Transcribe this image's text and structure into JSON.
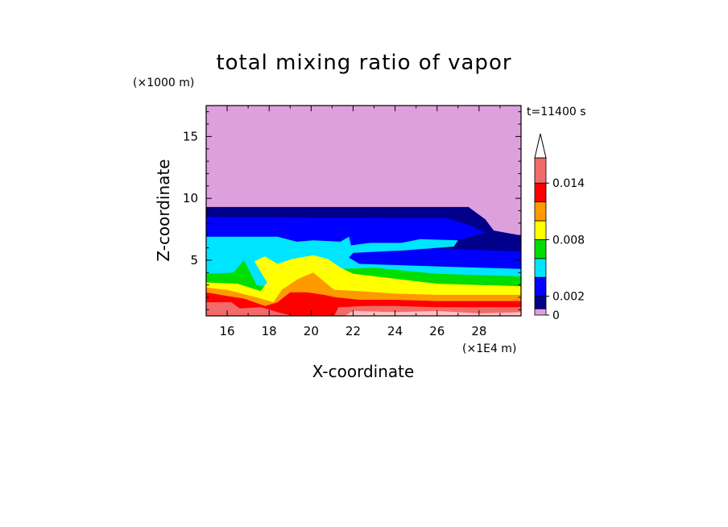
{
  "chart_data": {
    "type": "contour",
    "title": "total mixing ratio of vapor",
    "xlabel": "X-coordinate",
    "ylabel": "Z-coordinate",
    "x_unit": "(×1E4 m)",
    "y_unit": "(×1000 m)",
    "time_label": "t=11400 s",
    "xlim": [
      15,
      30
    ],
    "ylim": [
      0.5,
      17.5
    ],
    "x_ticks": [
      16,
      18,
      20,
      22,
      24,
      26,
      28
    ],
    "y_ticks": [
      5,
      10,
      15
    ],
    "colorbar": {
      "levels": [
        0,
        0.001,
        0.002,
        0.004,
        0.006,
        0.008,
        0.01,
        0.012,
        0.014,
        0.016
      ],
      "labels": [
        "0",
        "0.002",
        "0.008",
        "0.014"
      ],
      "extend": "max",
      "colors": [
        "#dda0dd",
        "#00008b",
        "#0000ff",
        "#00e5ff",
        "#00dd00",
        "#ffff00",
        "#ff9900",
        "#ff0000",
        "#f26b6b",
        "#ffc0c0"
      ]
    },
    "bands": [
      {
        "level": "0-0.001",
        "color": "#dda0dd",
        "points": [
          [
            15,
            17.5
          ],
          [
            30,
            17.5
          ],
          [
            30,
            0.5
          ],
          [
            15,
            0.5
          ]
        ]
      },
      {
        "level": "0.001-0.002",
        "color": "#00008b",
        "points": [
          [
            15,
            9.3
          ],
          [
            27.5,
            9.3
          ],
          [
            28.3,
            8.3
          ],
          [
            28.7,
            7.4
          ],
          [
            30,
            7.0
          ],
          [
            30,
            0.5
          ],
          [
            15,
            0.5
          ]
        ]
      },
      {
        "level": "0.002-0.004",
        "color": "#0000ff",
        "points": [
          [
            15,
            8.5
          ],
          [
            26.5,
            8.4
          ],
          [
            27.6,
            7.8
          ],
          [
            28.3,
            7.2
          ],
          [
            27.2,
            6.7
          ],
          [
            24,
            6.2
          ],
          [
            22,
            6.2
          ],
          [
            30,
            5.7
          ],
          [
            30,
            0.5
          ],
          [
            15,
            0.5
          ]
        ]
      },
      {
        "level": "0.004-0.006",
        "color": "#00e5ff",
        "points": [
          [
            15,
            6.9
          ],
          [
            18.4,
            6.9
          ],
          [
            19.3,
            6.5
          ],
          [
            20.1,
            6.6
          ],
          [
            21.4,
            6.5
          ],
          [
            21.8,
            6.9
          ],
          [
            21.9,
            6.2
          ],
          [
            22.8,
            6.4
          ],
          [
            24.3,
            6.4
          ],
          [
            25.2,
            6.7
          ],
          [
            27.0,
            6.6
          ],
          [
            26.8,
            6.1
          ],
          [
            24.5,
            5.8
          ],
          [
            22,
            5.6
          ],
          [
            21.8,
            5.2
          ],
          [
            22.3,
            4.7
          ],
          [
            26,
            4.5
          ],
          [
            30,
            4.3
          ],
          [
            30,
            0.5
          ],
          [
            15,
            0.5
          ]
        ]
      },
      {
        "level": "0.006-0.008",
        "color": "#00dd00",
        "points": [
          [
            15,
            3.9
          ],
          [
            16.3,
            4.0
          ],
          [
            16.8,
            5.0
          ],
          [
            17.4,
            3.0
          ],
          [
            18.3,
            2.7
          ],
          [
            18.9,
            3.3
          ],
          [
            19.6,
            3.9
          ],
          [
            20.2,
            4.8
          ],
          [
            21.4,
            4.3
          ],
          [
            23,
            4.4
          ],
          [
            26,
            3.9
          ],
          [
            30,
            3.7
          ],
          [
            30,
            0.5
          ],
          [
            15,
            0.5
          ]
        ]
      },
      {
        "level": "0.008-0.010",
        "color": "#ffff00",
        "points": [
          [
            15,
            3.2
          ],
          [
            16.5,
            3.1
          ],
          [
            17.6,
            2.5
          ],
          [
            17.9,
            3.2
          ],
          [
            17.3,
            4.9
          ],
          [
            17.8,
            5.3
          ],
          [
            18.4,
            4.7
          ],
          [
            19.1,
            5.1
          ],
          [
            20.1,
            5.4
          ],
          [
            20.8,
            5.1
          ],
          [
            21.4,
            4.4
          ],
          [
            22.0,
            3.9
          ],
          [
            24,
            3.5
          ],
          [
            26,
            3.1
          ],
          [
            30,
            2.9
          ],
          [
            30,
            0.5
          ],
          [
            15,
            0.5
          ]
        ]
      },
      {
        "level": "0.010-0.012",
        "color": "#ff9900",
        "points": [
          [
            15,
            2.8
          ],
          [
            16,
            2.6
          ],
          [
            17.4,
            2.0
          ],
          [
            18.2,
            1.6
          ],
          [
            18.6,
            2.6
          ],
          [
            19.4,
            3.5
          ],
          [
            20.1,
            4.0
          ],
          [
            20.6,
            3.3
          ],
          [
            21.1,
            2.6
          ],
          [
            22.3,
            2.5
          ],
          [
            24,
            2.3
          ],
          [
            26,
            2.2
          ],
          [
            30,
            2.2
          ],
          [
            30,
            0.5
          ],
          [
            15,
            0.5
          ]
        ]
      },
      {
        "level": "0.012-0.014",
        "color": "#ff0000",
        "points": [
          [
            15,
            2.4
          ],
          [
            16,
            2.1
          ],
          [
            16.8,
            1.9
          ],
          [
            17.8,
            1.3
          ],
          [
            18.4,
            1.6
          ],
          [
            19.0,
            2.4
          ],
          [
            19.8,
            2.4
          ],
          [
            20.6,
            2.2
          ],
          [
            21.2,
            2.0
          ],
          [
            22.3,
            1.8
          ],
          [
            24,
            1.8
          ],
          [
            26,
            1.7
          ],
          [
            30,
            1.7
          ],
          [
            30,
            0.5
          ],
          [
            15,
            0.5
          ]
        ]
      },
      {
        "level": "0.014-0.016",
        "color": "#f26b6b",
        "points": [
          [
            15,
            1.6
          ],
          [
            16.2,
            1.6
          ],
          [
            16.6,
            1.1
          ],
          [
            17.6,
            1.2
          ],
          [
            18.6,
            0.7
          ],
          [
            18.9,
            0.6
          ],
          [
            19.0,
            0.5
          ],
          [
            15,
            0.5
          ]
        ]
      },
      {
        "level": "0.014-0.016",
        "color": "#f26b6b",
        "points": [
          [
            21.1,
            0.5
          ],
          [
            21.3,
            1.2
          ],
          [
            22.5,
            1.3
          ],
          [
            24,
            1.3
          ],
          [
            26,
            1.2
          ],
          [
            30,
            1.2
          ],
          [
            30,
            0.5
          ]
        ]
      },
      {
        "level": ">0.016",
        "color": "#ffc0c0",
        "points": [
          [
            21.6,
            0.5
          ],
          [
            22,
            0.9
          ],
          [
            24,
            0.8
          ],
          [
            26,
            0.9
          ],
          [
            28,
            0.7
          ],
          [
            30,
            0.8
          ],
          [
            30,
            0.5
          ]
        ]
      }
    ]
  }
}
